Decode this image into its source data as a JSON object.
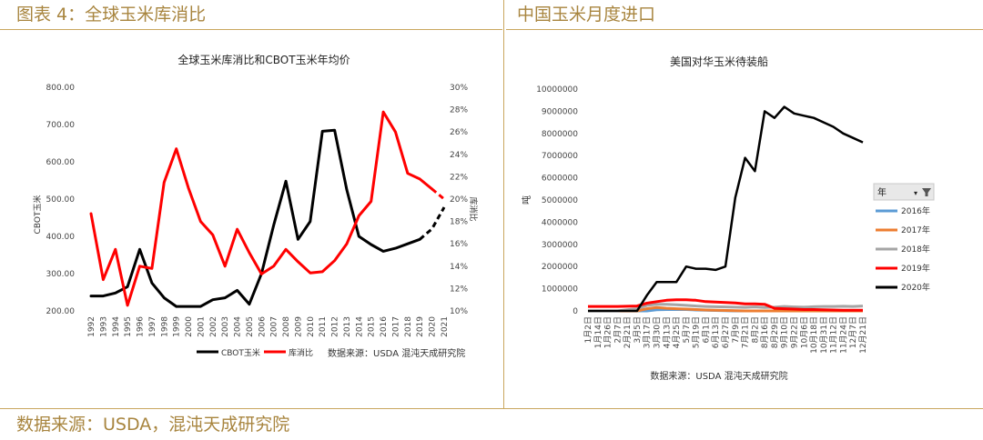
{
  "header": {
    "left_title": "图表 4：全球玉米库消比",
    "right_title": "中国玉米月度进口"
  },
  "footer": {
    "source": "数据来源：USDA，混沌天成研究院"
  },
  "colors": {
    "accent": "#c9a75e",
    "black": "#000000",
    "red": "#ff0000",
    "blue": "#5b9bd5",
    "orange": "#ed7d31",
    "gray": "#a5a5a5"
  },
  "chart_data": [
    {
      "type": "line",
      "title": "全球玉米库消比和CBOT玉米年均价",
      "xlabel": "",
      "ylabel": "CBOT玉米",
      "y2label": "库消比",
      "source_note": "数据来源：USDA 混沌天成研究院",
      "x": [
        "1992",
        "1993",
        "1994",
        "1995",
        "1996",
        "1997",
        "1998",
        "1999",
        "2000",
        "2001",
        "2002",
        "2003",
        "2004",
        "2005",
        "2006",
        "2007",
        "2008",
        "2009",
        "2010",
        "2011",
        "2012",
        "2013",
        "2014",
        "2015",
        "2016",
        "2017",
        "2018",
        "2019",
        "2020",
        "2021"
      ],
      "y_ticks": [
        "200.00",
        "300.00",
        "400.00",
        "500.00",
        "600.00",
        "700.00",
        "800.00"
      ],
      "y2_ticks": [
        "10%",
        "12%",
        "14%",
        "16%",
        "18%",
        "20%",
        "22%",
        "24%",
        "26%",
        "28%",
        "30%"
      ],
      "ylim": [
        200,
        800
      ],
      "y2lim": [
        10,
        30
      ],
      "legend_position": "bottom",
      "series": [
        {
          "name": "CBOT玉米",
          "axis": "left",
          "color": "#000000",
          "values": [
            240,
            240,
            248,
            265,
            365,
            275,
            235,
            212,
            212,
            212,
            230,
            235,
            255,
            218,
            300,
            430,
            548,
            392,
            440,
            682,
            685,
            525,
            400,
            378,
            360,
            368,
            380,
            392,
            420,
            478
          ],
          "projected_from": 27
        },
        {
          "name": "库消比",
          "axis": "right",
          "color": "#ff0000",
          "values": [
            18.7,
            12.8,
            15.5,
            10.5,
            14.0,
            13.8,
            21.5,
            24.5,
            21.0,
            18.0,
            16.8,
            14.0,
            17.3,
            15.2,
            13.3,
            14.0,
            15.5,
            14.4,
            13.4,
            13.5,
            14.5,
            16.0,
            18.5,
            19.8,
            27.8,
            26.0,
            22.3,
            21.8,
            20.9,
            20.0
          ],
          "projected_from": 28
        }
      ]
    },
    {
      "type": "line",
      "title": "美国对华玉米待装船",
      "xlabel": "",
      "ylabel": "吨",
      "source_note": "数据来源：USDA 混沌天成研究院",
      "x": [
        "1月2日",
        "1月14日",
        "1月26日",
        "2月7日",
        "2月21日",
        "3月5日",
        "3月17日",
        "3月30日",
        "4月13日",
        "4月25日",
        "5月7日",
        "5月19日",
        "6月1日",
        "6月13日",
        "6月27日",
        "7月9日",
        "7月21日",
        "8月2日",
        "8月16日",
        "8月29日",
        "9月10日",
        "9月22日",
        "10月6日",
        "10月18日",
        "10月31日",
        "11月12日",
        "11月24日",
        "12月7日",
        "12月21日"
      ],
      "y_ticks": [
        "0",
        "1000000",
        "2000000",
        "3000000",
        "4000000",
        "5000000",
        "6000000",
        "7000000",
        "8000000",
        "9000000",
        "10000000"
      ],
      "ylim": [
        0,
        10000000
      ],
      "legend_title": "年",
      "legend_position": "right",
      "series": [
        {
          "name": "2016年",
          "color": "#5b9bd5",
          "values": [
            0,
            0,
            0,
            0,
            0,
            0,
            0,
            50000,
            60000,
            60000,
            60000,
            40000,
            30000,
            20000,
            10000,
            0,
            0,
            0,
            0,
            0,
            0,
            0,
            0,
            0,
            0,
            0,
            0,
            0,
            0
          ]
        },
        {
          "name": "2017年",
          "color": "#ed7d31",
          "values": [
            0,
            0,
            0,
            0,
            0,
            0,
            100000,
            150000,
            120000,
            100000,
            80000,
            60000,
            40000,
            30000,
            20000,
            10000,
            0,
            0,
            0,
            0,
            0,
            0,
            0,
            0,
            0,
            0,
            0,
            0,
            0
          ]
        },
        {
          "name": "2018年",
          "color": "#a5a5a5",
          "values": [
            0,
            0,
            0,
            0,
            50000,
            100000,
            250000,
            300000,
            300000,
            280000,
            250000,
            220000,
            200000,
            190000,
            180000,
            170000,
            160000,
            180000,
            150000,
            170000,
            200000,
            180000,
            170000,
            190000,
            200000,
            200000,
            210000,
            200000,
            220000
          ]
        },
        {
          "name": "2019年",
          "color": "#ff0000",
          "values": [
            200000,
            200000,
            200000,
            200000,
            210000,
            220000,
            350000,
            420000,
            480000,
            500000,
            500000,
            480000,
            420000,
            400000,
            380000,
            360000,
            320000,
            320000,
            300000,
            120000,
            100000,
            80000,
            60000,
            60000,
            50000,
            40000,
            30000,
            30000,
            30000
          ]
        },
        {
          "name": "2020年",
          "color": "#000000",
          "values": [
            0,
            0,
            0,
            0,
            0,
            0,
            700000,
            1300000,
            1300000,
            1300000,
            2000000,
            1900000,
            1900000,
            1850000,
            2000000,
            5100000,
            6900000,
            6300000,
            9000000,
            8700000,
            9200000,
            8900000,
            8800000,
            8700000,
            8500000,
            8300000,
            8000000,
            7800000,
            7600000
          ]
        }
      ]
    }
  ]
}
